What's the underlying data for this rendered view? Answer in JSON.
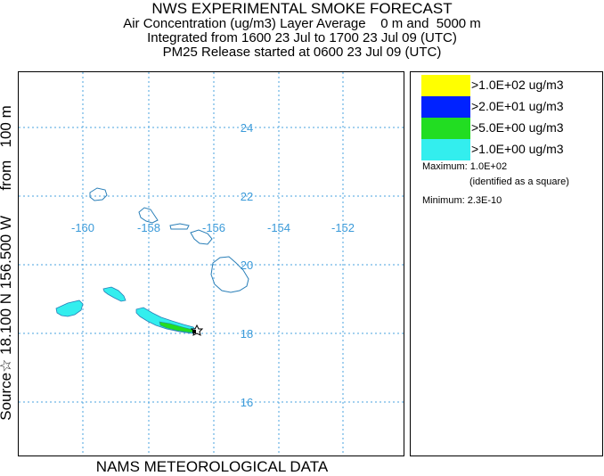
{
  "header": {
    "title": "NWS EXPERIMENTAL SMOKE FORECAST",
    "line1": "Air Concentration (ug/m3) Layer Average    0 m and  5000 m",
    "line2": "Integrated from 1600 23 Jul to 1700 23 Jul 09 (UTC)",
    "line3": "PM25 Release started at 0600 23 Jul 09 (UTC)"
  },
  "side_label": "Source☆ 18.100 N 156.500 W      from   100 m",
  "bottom_label": "NAMS METEOROLOGICAL DATA",
  "map": {
    "lon_labels": [
      "-160",
      "-158",
      "-156",
      "-154",
      "-152"
    ],
    "lat_labels": [
      "24",
      "22",
      "20",
      "18",
      "16"
    ],
    "colors": {
      "grid": "#4aa3df",
      "coast": "#2a7fb8",
      "label": "#3a9ad9"
    },
    "source_marker": "star-icon"
  },
  "legend": {
    "items": [
      {
        "label": ">1.0E+02 ug/m3",
        "color": "#ffff00"
      },
      {
        "label": ">2.0E+01 ug/m3",
        "color": "#0022ff"
      },
      {
        "label": ">5.0E+00 ug/m3",
        "color": "#22dd22"
      },
      {
        "label": ">1.0E+00 ug/m3",
        "color": "#33eeee"
      }
    ],
    "maximum": "Maximum: 1.0E+02",
    "maximum_note": "(identified as a square)",
    "minimum": "Minimum: 2.3E-10"
  }
}
